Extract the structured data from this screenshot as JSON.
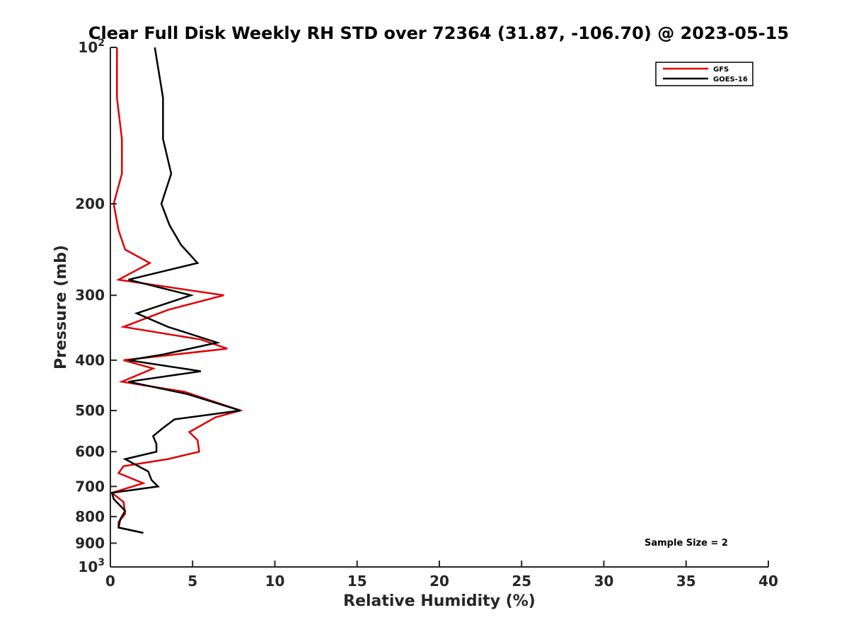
{
  "chart_data": {
    "type": "line",
    "title": "Clear Full Disk Weekly RH STD over 72364 (31.87, -106.70) @ 2023-05-15",
    "xlabel": "Relative Humidity (%)",
    "ylabel": "Pressure (mb)",
    "xlim": [
      0,
      40
    ],
    "ylim": [
      100,
      1000
    ],
    "yscale": "log",
    "y_reversed": true,
    "grid": false,
    "legend_placement": "top-right",
    "x_ticks": [
      "0",
      "5",
      "10",
      "15",
      "20",
      "25",
      "30",
      "35",
      "40"
    ],
    "y_ticks": [
      {
        "value": 100,
        "label": "10",
        "sup": "2"
      },
      {
        "value": 200,
        "label": "200",
        "sup": ""
      },
      {
        "value": 300,
        "label": "300",
        "sup": ""
      },
      {
        "value": 400,
        "label": "400",
        "sup": ""
      },
      {
        "value": 500,
        "label": "500",
        "sup": ""
      },
      {
        "value": 600,
        "label": "600",
        "sup": ""
      },
      {
        "value": 700,
        "label": "700",
        "sup": ""
      },
      {
        "value": 800,
        "label": "800",
        "sup": ""
      },
      {
        "value": 900,
        "label": "900",
        "sup": ""
      },
      {
        "value": 1000,
        "label": "10",
        "sup": "3"
      }
    ],
    "annotation": "Sample Size = 2",
    "series": [
      {
        "name": "GFS",
        "color": "#e00000",
        "points": [
          [
            0.4,
            100
          ],
          [
            0.4,
            125
          ],
          [
            0.7,
            150
          ],
          [
            0.7,
            175
          ],
          [
            0.2,
            200
          ],
          [
            0.5,
            225
          ],
          [
            0.9,
            245
          ],
          [
            2.4,
            260
          ],
          [
            0.5,
            280
          ],
          [
            6.9,
            300
          ],
          [
            3.5,
            320
          ],
          [
            0.8,
            345
          ],
          [
            5.5,
            365
          ],
          [
            7.1,
            380
          ],
          [
            0.8,
            400
          ],
          [
            2.6,
            415
          ],
          [
            0.7,
            440
          ],
          [
            4.5,
            460
          ],
          [
            7.9,
            500
          ],
          [
            6.4,
            515
          ],
          [
            4.8,
            550
          ],
          [
            5.3,
            570
          ],
          [
            5.4,
            600
          ],
          [
            3.5,
            620
          ],
          [
            0.8,
            640
          ],
          [
            0.5,
            660
          ],
          [
            2.0,
            690
          ],
          [
            0.1,
            720
          ],
          [
            0.8,
            750
          ],
          [
            0.9,
            790
          ],
          [
            0.5,
            820
          ],
          [
            0.5,
            840
          ],
          [
            2.0,
            860
          ]
        ]
      },
      {
        "name": "GOES-16",
        "color": "#000000",
        "points": [
          [
            2.7,
            100
          ],
          [
            3.2,
            125
          ],
          [
            3.2,
            150
          ],
          [
            3.7,
            175
          ],
          [
            3.1,
            200
          ],
          [
            3.6,
            220
          ],
          [
            4.3,
            240
          ],
          [
            5.3,
            260
          ],
          [
            1.1,
            280
          ],
          [
            4.9,
            300
          ],
          [
            1.6,
            325
          ],
          [
            3.5,
            345
          ],
          [
            6.5,
            370
          ],
          [
            3.2,
            390
          ],
          [
            1.1,
            400
          ],
          [
            5.5,
            420
          ],
          [
            1.1,
            440
          ],
          [
            4.7,
            465
          ],
          [
            7.9,
            500
          ],
          [
            3.9,
            520
          ],
          [
            3.2,
            540
          ],
          [
            2.6,
            560
          ],
          [
            2.8,
            580
          ],
          [
            2.8,
            600
          ],
          [
            0.9,
            620
          ],
          [
            2.3,
            655
          ],
          [
            2.5,
            680
          ],
          [
            2.9,
            700
          ],
          [
            0.1,
            720
          ],
          [
            0.2,
            740
          ],
          [
            0.9,
            780
          ],
          [
            0.6,
            810
          ],
          [
            0.5,
            840
          ],
          [
            2.0,
            860
          ]
        ]
      }
    ]
  }
}
